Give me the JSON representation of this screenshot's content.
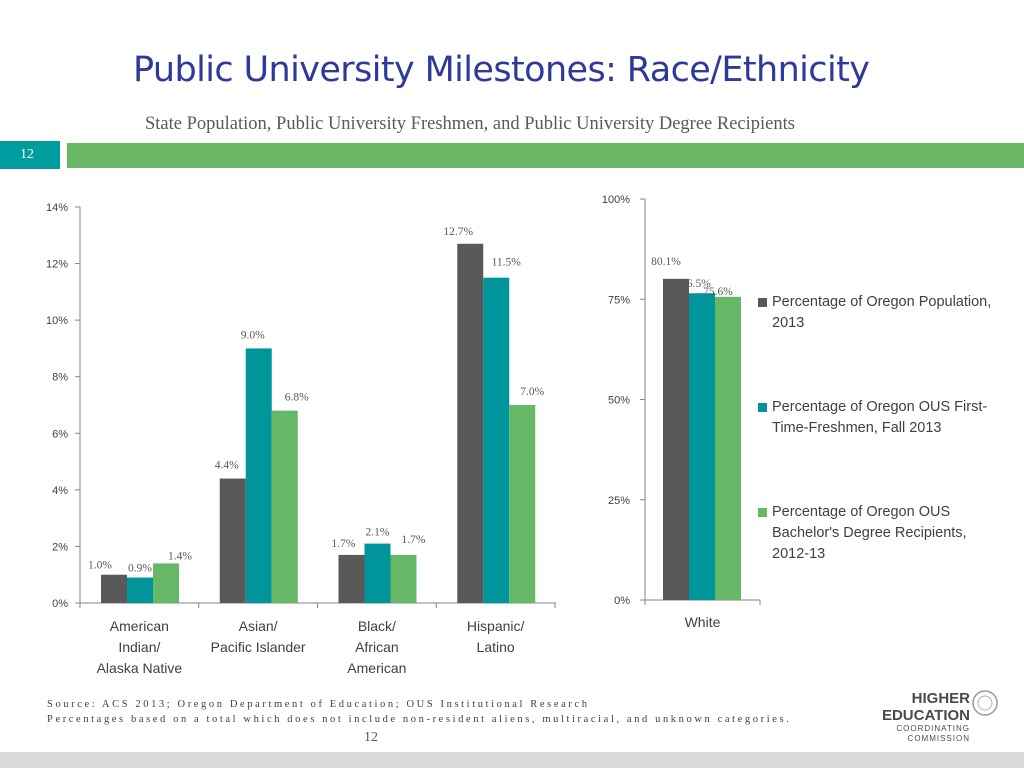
{
  "header": {
    "title": "Public University Milestones: Race/Ethnicity",
    "subtitle": "State Population, Public University Freshmen, and Public University Degree Recipients",
    "slide_number": "12"
  },
  "colors": {
    "title": "#2e3a9a",
    "badge": "#009da0",
    "band": "#6ab866",
    "series": [
      "#595959",
      "#00959a",
      "#66b866"
    ]
  },
  "legend": [
    {
      "label": "Percentage of Oregon Population, 2013"
    },
    {
      "label": "Percentage of Oregon OUS First-Time-Freshmen, Fall 2013"
    },
    {
      "label": "Percentage of Oregon OUS Bachelor's Degree Recipients, 2012-13"
    }
  ],
  "chart_data": [
    {
      "type": "bar",
      "categories": [
        [
          "American",
          "Indian/",
          "Alaska Native"
        ],
        [
          "Asian/",
          "Pacific Islander"
        ],
        [
          "Black/",
          "African",
          "American"
        ],
        [
          "Hispanic/",
          "Latino"
        ]
      ],
      "series": [
        {
          "name": "Percentage of Oregon Population, 2013",
          "values": [
            1.0,
            4.4,
            1.7,
            12.7
          ],
          "labels": [
            "1.0%",
            "4.4%",
            "1.7%",
            "12.7%"
          ]
        },
        {
          "name": "Percentage of Oregon OUS First-Time-Freshmen, Fall 2013",
          "values": [
            0.9,
            9.0,
            2.1,
            11.5
          ],
          "labels": [
            "0.9%",
            "9.0%",
            "2.1%",
            "11.5%"
          ]
        },
        {
          "name": "Percentage of Oregon OUS Bachelor's Degree Recipients, 2012-13",
          "values": [
            1.4,
            6.8,
            1.7,
            7.0
          ],
          "labels": [
            "1.4%",
            "6.8%",
            "1.7%",
            "7.0%"
          ]
        }
      ],
      "ylim": [
        0,
        14
      ],
      "yticks": [
        0,
        2,
        4,
        6,
        8,
        10,
        12,
        14
      ],
      "ytick_labels": [
        "0%",
        "2%",
        "4%",
        "6%",
        "8%",
        "10%",
        "12%",
        "14%"
      ]
    },
    {
      "type": "bar",
      "categories": [
        [
          "White"
        ]
      ],
      "series": [
        {
          "name": "Percentage of Oregon Population, 2013",
          "values": [
            80.1
          ],
          "labels": [
            "80.1%"
          ]
        },
        {
          "name": "Percentage of Oregon OUS First-Time-Freshmen, Fall 2013",
          "values": [
            76.5
          ],
          "labels": [
            "76.5%"
          ]
        },
        {
          "name": "Percentage of Oregon OUS Bachelor's Degree Recipients, 2012-13",
          "values": [
            75.6
          ],
          "labels": [
            "75.6%"
          ]
        }
      ],
      "ylim": [
        0,
        100
      ],
      "yticks": [
        0,
        25,
        50,
        75,
        100
      ],
      "ytick_labels": [
        "0%",
        "25%",
        "50%",
        "75%",
        "100%"
      ],
      "legend_position": "right"
    }
  ],
  "footer": {
    "source_line1": "Source: ACS 2013; Oregon Department of Education; OUS Institutional Research",
    "source_line2": "Percentages based on a total which does not include non-resident aliens, multiracial, and unknown categories.",
    "page_number": "12",
    "logo": {
      "line1": "HIGHER",
      "line2": "EDUCATION",
      "line3": "COORDINATING",
      "line4": "COMMISSION"
    }
  }
}
